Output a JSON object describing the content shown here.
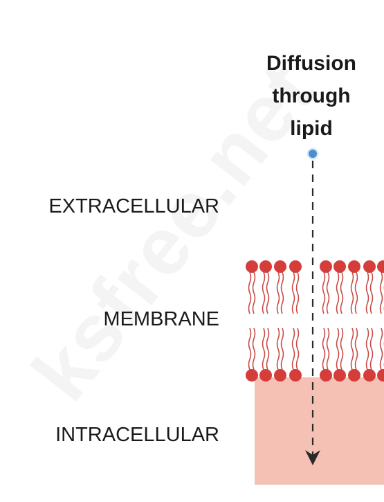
{
  "diagram": {
    "title_lines": [
      "Diffusion",
      "through",
      "lipid"
    ],
    "regions": {
      "extracellular": "EXTRACELLULAR",
      "membrane": "MEMBRANE",
      "intracellular": "INTRACELLULAR"
    },
    "watermark": "ksfree.net",
    "colors": {
      "lipid_head": "#d43d3a",
      "lipid_tail": "#c94a46",
      "intracellular_fill": "#f4c1b4",
      "solute": "#4a8fd0",
      "arrow": "#2a2a2a"
    }
  }
}
